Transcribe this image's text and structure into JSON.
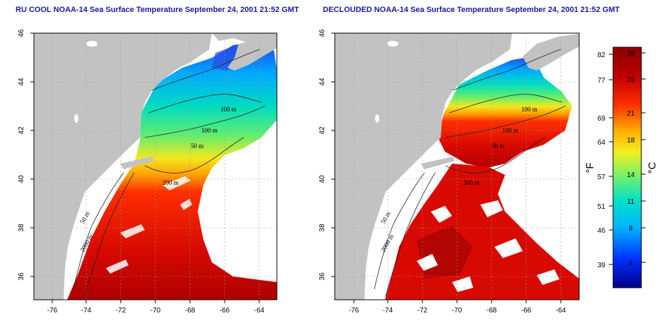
{
  "titles": {
    "left": "RU COOL NOAA-14 Sea Surface Temperature September 24, 2001 21:52 GMT",
    "right": "DECLOUDED NOAA-14 Sea Surface Temperature September 24, 2001 21:52 GMT"
  },
  "axes": {
    "lon_ticks": [
      "-76",
      "-74",
      "-72",
      "-70",
      "-68",
      "-66",
      "-64"
    ],
    "lat_ticks": [
      "46",
      "44",
      "42",
      "40",
      "38",
      "36"
    ],
    "lon_range": [
      -77,
      -63
    ],
    "lat_range": [
      35,
      46
    ]
  },
  "contour_labels": {
    "left": [
      "100 m",
      "100 m",
      "50 m",
      "200 m",
      "50 m",
      "2000 m"
    ],
    "right": [
      "100 m",
      "100 m",
      "50 m",
      "200 m",
      "50 m",
      "2000 m"
    ]
  },
  "colorbar": {
    "f_label": "°F",
    "c_label": "°C",
    "f_ticks": [
      "82",
      "77",
      "69",
      "64",
      "57",
      "51",
      "46",
      "39"
    ],
    "c_ticks": [
      "28",
      "25",
      "21",
      "18",
      "14",
      "11",
      "8",
      "4"
    ],
    "colors": [
      "#00008b",
      "#0030ff",
      "#00b4ff",
      "#00e0c8",
      "#70f070",
      "#f0f020",
      "#ffb000",
      "#ff3000",
      "#c00000",
      "#8b0000"
    ]
  },
  "colors": {
    "land": "#c2c2c2",
    "title": "#1a1aa0"
  }
}
